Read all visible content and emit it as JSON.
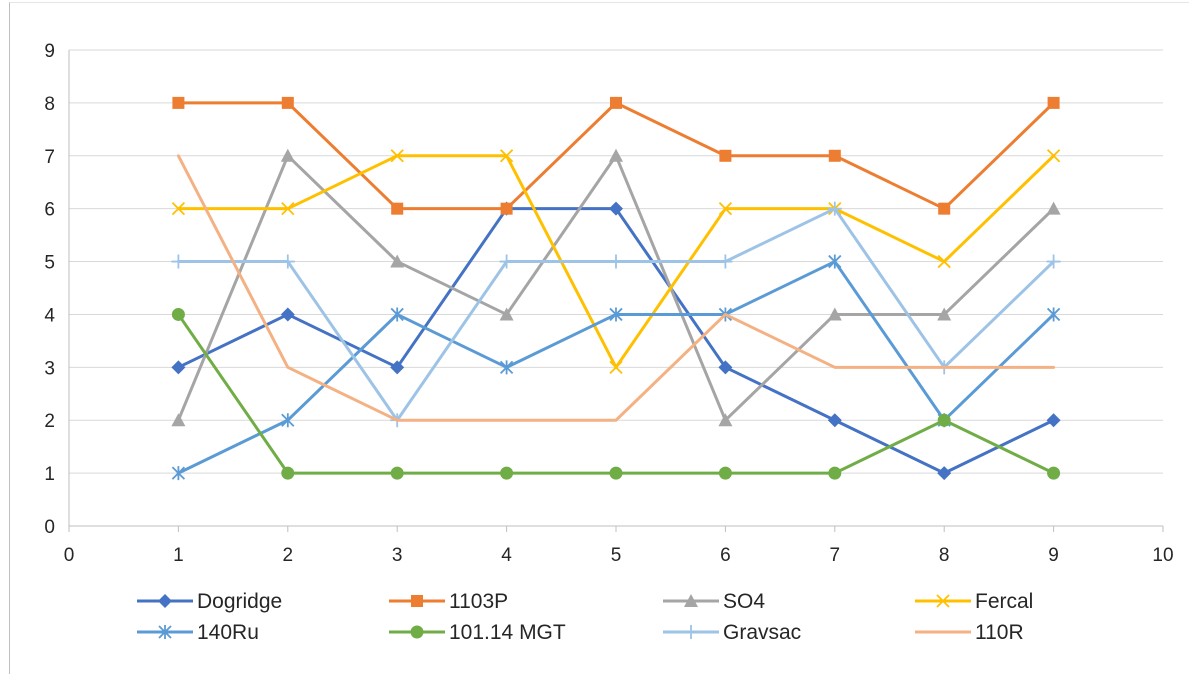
{
  "chart_data": {
    "type": "line",
    "title": "",
    "xlabel": "",
    "ylabel": "",
    "xlim": [
      0,
      10
    ],
    "ylim": [
      0,
      9
    ],
    "x_ticks": [
      "0",
      "1",
      "2",
      "3",
      "4",
      "5",
      "6",
      "7",
      "8",
      "9",
      "10"
    ],
    "y_ticks": [
      "0",
      "1",
      "2",
      "3",
      "4",
      "5",
      "6",
      "7",
      "8",
      "9"
    ],
    "grid": "horizontal",
    "legend_position": "bottom",
    "x": [
      1,
      2,
      3,
      4,
      5,
      6,
      7,
      8,
      9
    ],
    "series": [
      {
        "name": "Dogridge",
        "color": "#4472c4",
        "marker": "diamond",
        "values": [
          3,
          4,
          3,
          6,
          6,
          3,
          2,
          1,
          2
        ]
      },
      {
        "name": "1103P",
        "color": "#ed7d31",
        "marker": "square",
        "values": [
          8,
          8,
          6,
          6,
          8,
          7,
          7,
          6,
          8
        ]
      },
      {
        "name": "SO4",
        "color": "#a5a5a5",
        "marker": "triangle",
        "values": [
          2,
          7,
          5,
          4,
          7,
          2,
          4,
          4,
          6
        ]
      },
      {
        "name": "Fercal",
        "color": "#ffc000",
        "marker": "x",
        "values": [
          6,
          6,
          7,
          7,
          3,
          6,
          6,
          5,
          7
        ]
      },
      {
        "name": "140Ru",
        "color": "#5b9bd5",
        "marker": "star",
        "values": [
          1,
          2,
          4,
          3,
          4,
          4,
          5,
          2,
          4
        ]
      },
      {
        "name": "101.14 MGT",
        "color": "#70ad47",
        "marker": "circle",
        "values": [
          4,
          1,
          1,
          1,
          1,
          1,
          1,
          2,
          1
        ]
      },
      {
        "name": "Gravsac",
        "color": "#9dc3e6",
        "marker": "plus",
        "values": [
          5,
          5,
          2,
          5,
          5,
          5,
          6,
          3,
          5
        ]
      },
      {
        "name": "110R",
        "color": "#f4b183",
        "marker": "none",
        "values": [
          7,
          3,
          2,
          2,
          2,
          4,
          3,
          3,
          3
        ]
      }
    ]
  }
}
